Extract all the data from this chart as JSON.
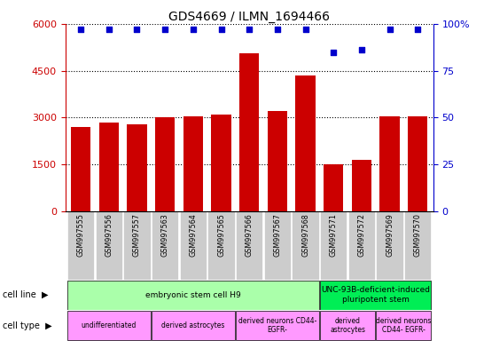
{
  "title": "GDS4669 / ILMN_1694466",
  "samples": [
    "GSM997555",
    "GSM997556",
    "GSM997557",
    "GSM997563",
    "GSM997564",
    "GSM997565",
    "GSM997566",
    "GSM997567",
    "GSM997568",
    "GSM997571",
    "GSM997572",
    "GSM997569",
    "GSM997570"
  ],
  "counts": [
    2700,
    2850,
    2800,
    3000,
    3050,
    3100,
    5050,
    3200,
    4350,
    1500,
    1650,
    3050,
    3050
  ],
  "percentiles": [
    97,
    97,
    97,
    97,
    97,
    97,
    97,
    97,
    97,
    85,
    86,
    97,
    97
  ],
  "ylim_left": [
    0,
    6000
  ],
  "ylim_right": [
    0,
    100
  ],
  "yticks_left": [
    0,
    1500,
    3000,
    4500,
    6000
  ],
  "yticks_right": [
    0,
    25,
    50,
    75,
    100
  ],
  "bar_color": "#cc0000",
  "dot_color": "#0000cc",
  "cell_line_groups": [
    {
      "label": "embryonic stem cell H9",
      "start": 0,
      "end": 8,
      "color": "#aaffaa"
    },
    {
      "label": "UNC-93B-deficient-induced\npluripotent stem",
      "start": 9,
      "end": 12,
      "color": "#00ee55"
    }
  ],
  "cell_type_groups": [
    {
      "label": "undifferentiated",
      "start": 0,
      "end": 2,
      "color": "#ff99ff"
    },
    {
      "label": "derived astrocytes",
      "start": 3,
      "end": 5,
      "color": "#ff99ff"
    },
    {
      "label": "derived neurons CD44-\nEGFR-",
      "start": 6,
      "end": 8,
      "color": "#ff99ff"
    },
    {
      "label": "derived\nastrocytes",
      "start": 9,
      "end": 10,
      "color": "#ff99ff"
    },
    {
      "label": "derived neurons\nCD44- EGFR-",
      "start": 11,
      "end": 12,
      "color": "#ff99ff"
    }
  ],
  "legend_count_color": "#cc0000",
  "legend_pct_color": "#0000cc",
  "tick_label_color_left": "#cc0000",
  "tick_label_color_right": "#0000cc",
  "xticklabel_bg": "#cccccc",
  "fig_width": 5.46,
  "fig_height": 3.84,
  "fig_dpi": 100
}
